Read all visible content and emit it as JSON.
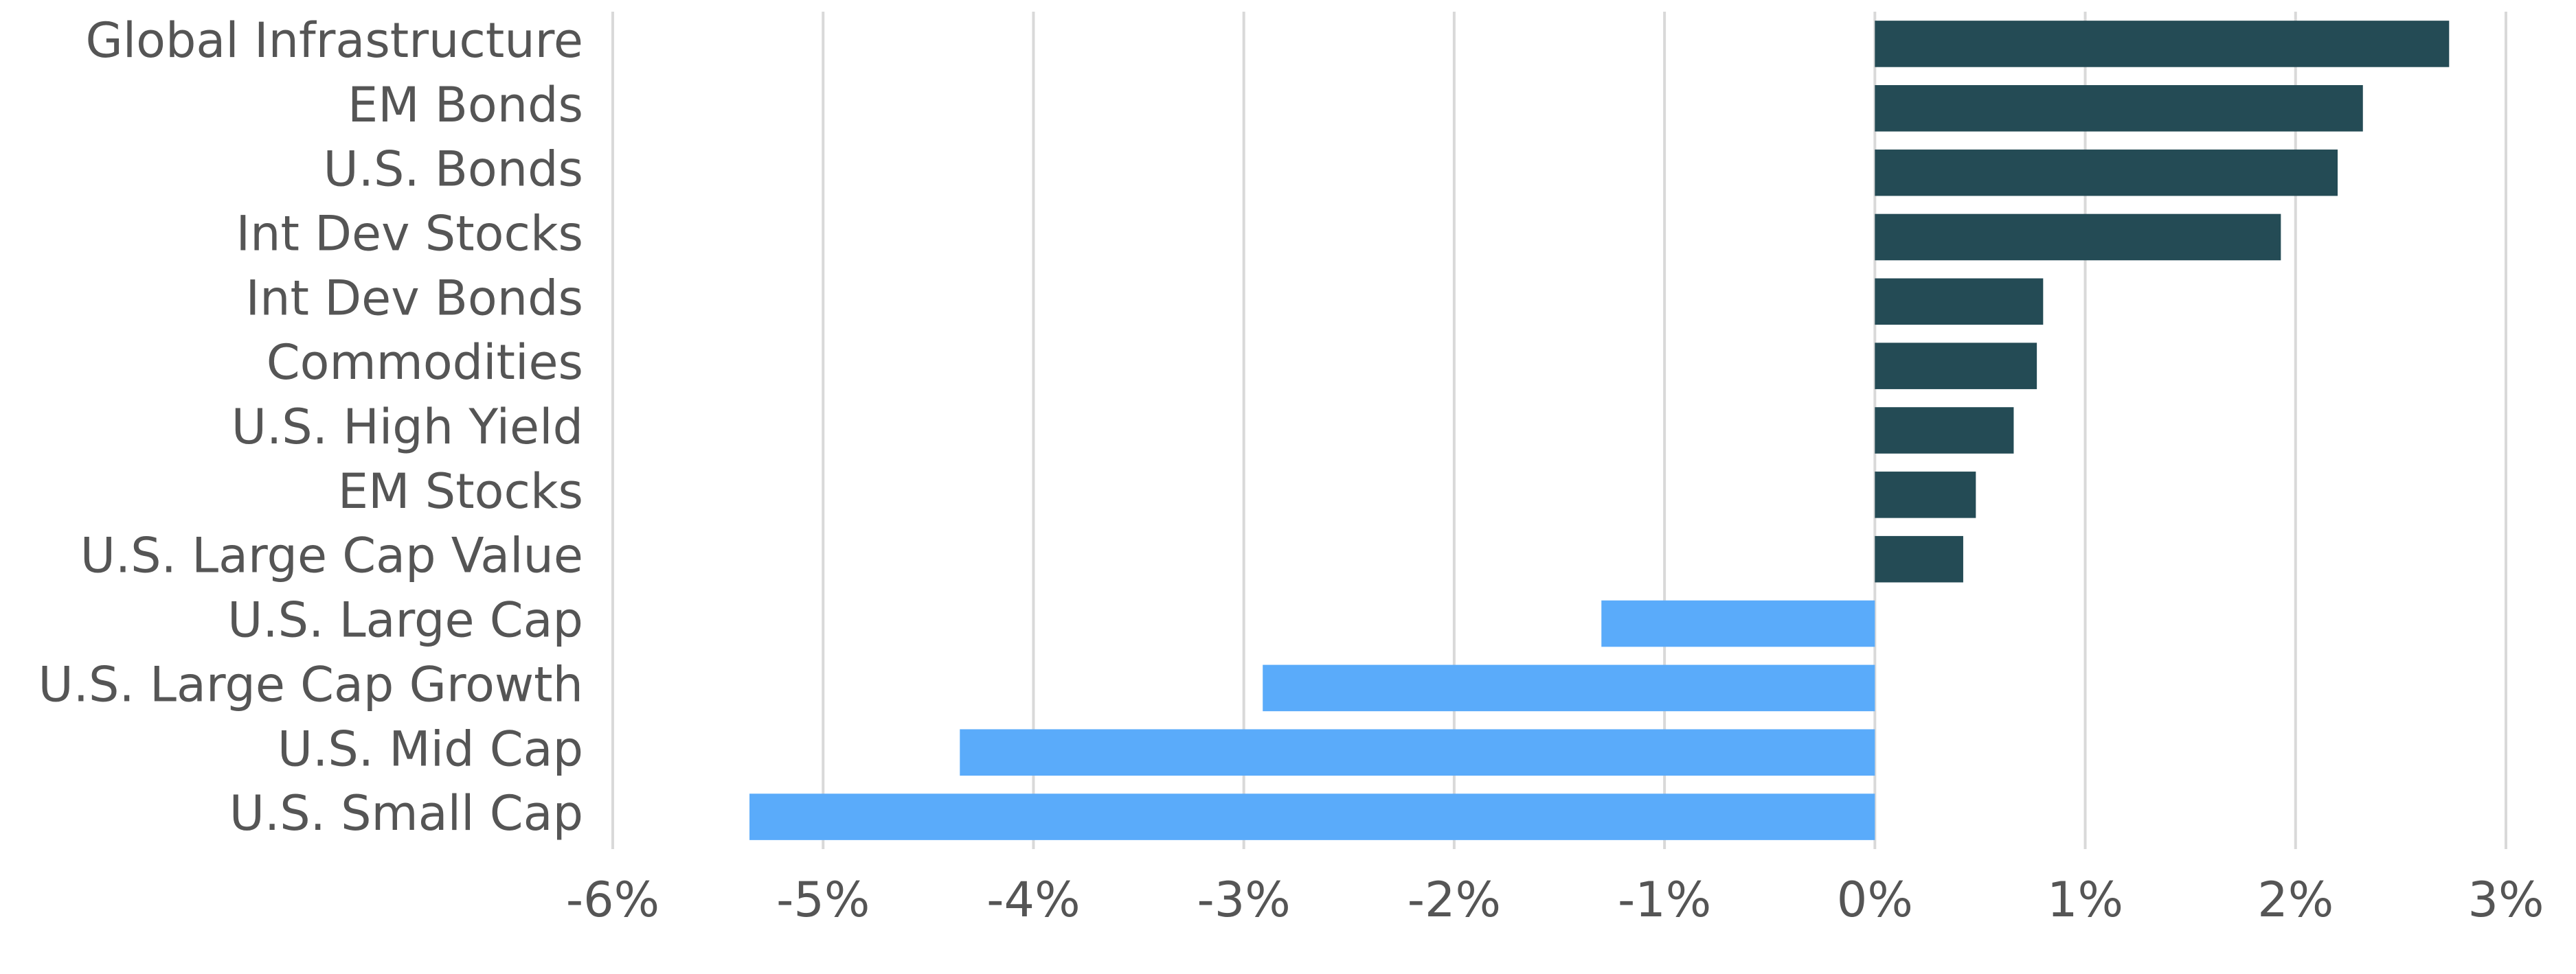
{
  "chart_data": {
    "type": "barh",
    "categories": [
      "Global Infrastructure",
      "EM Bonds",
      "U.S. Bonds",
      "Int Dev Stocks",
      "Int Dev Bonds",
      "Commodities",
      "U.S. High Yield",
      "EM Stocks",
      "U.S. Large Cap Value",
      "U.S. Large Cap",
      "U.S. Large Cap Growth",
      "U.S. Mid Cap",
      "U.S. Small Cap"
    ],
    "values": [
      2.73,
      2.32,
      2.2,
      1.93,
      0.8,
      0.77,
      0.66,
      0.48,
      0.42,
      -1.3,
      -2.91,
      -4.35,
      -5.35
    ],
    "colors": [
      "#244b55",
      "#244b55",
      "#244b55",
      "#244b55",
      "#244b55",
      "#244b55",
      "#244b55",
      "#244b55",
      "#244b55",
      "#5aabfa",
      "#5aabfa",
      "#5aabfa",
      "#5aabfa"
    ],
    "xlim": [
      -6,
      3
    ],
    "xticks": [
      {
        "value": -6,
        "label": "-6%"
      },
      {
        "value": -5,
        "label": "-5%"
      },
      {
        "value": -4,
        "label": "-4%"
      },
      {
        "value": -3,
        "label": "-3%"
      },
      {
        "value": -2,
        "label": "-2%"
      },
      {
        "value": -1,
        "label": "-1%"
      },
      {
        "value": 0,
        "label": "0%"
      },
      {
        "value": 1,
        "label": "1%"
      },
      {
        "value": 2,
        "label": "2%"
      },
      {
        "value": 3,
        "label": "3%"
      }
    ],
    "grid": true
  }
}
